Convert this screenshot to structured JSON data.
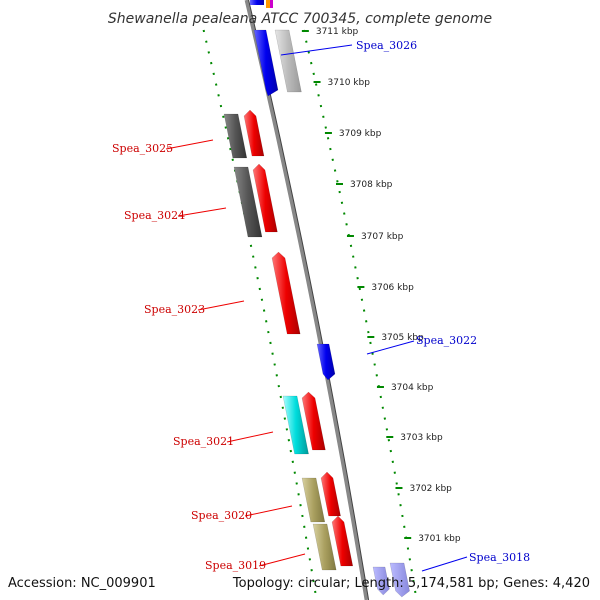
{
  "title": "Shewanella pealeana ATCC 700345, complete genome",
  "accession": "Accession: NC_009901",
  "topology": "Topology: circular; Length: 5,174,581 bp; Genes: 4,420",
  "ticks": [
    {
      "label": "3711 kbp"
    },
    {
      "label": "3710 kbp"
    },
    {
      "label": "3709 kbp"
    },
    {
      "label": "3708 kbp"
    },
    {
      "label": "3707 kbp"
    },
    {
      "label": "3706 kbp"
    },
    {
      "label": "3705 kbp"
    },
    {
      "label": "3704 kbp"
    },
    {
      "label": "3703 kbp"
    },
    {
      "label": "3702 kbp"
    },
    {
      "label": "3701 kbp"
    }
  ],
  "genes": [
    {
      "name": "Spea_3026",
      "strand": "minus",
      "color": "#0000ee"
    },
    {
      "name": "Spea_3025",
      "strand": "plus",
      "color": "#ee0000"
    },
    {
      "name": "Spea_3024",
      "strand": "plus",
      "color": "#ee0000"
    },
    {
      "name": "Spea_3023",
      "strand": "plus",
      "color": "#ee0000"
    },
    {
      "name": "Spea_3022",
      "strand": "minus",
      "color": "#0000ee"
    },
    {
      "name": "Spea_3021",
      "strand": "plus",
      "color": "#ee0000"
    },
    {
      "name": "Spea_3020",
      "strand": "plus",
      "color": "#ee0000"
    },
    {
      "name": "Spea_3019",
      "strand": "plus",
      "color": "#ee0000"
    },
    {
      "name": "Spea_3018",
      "strand": "minus",
      "color": "#0000ee"
    }
  ],
  "colors": {
    "plus_strand": "#ee0000",
    "minus_strand": "#0000ee",
    "backbone": "#888888",
    "tick": "#008800",
    "cog_dark": "#555555",
    "cog_light": "#bbbbbb",
    "cog_cyan": "#00dddd",
    "cog_khaki": "#aaa060"
  }
}
